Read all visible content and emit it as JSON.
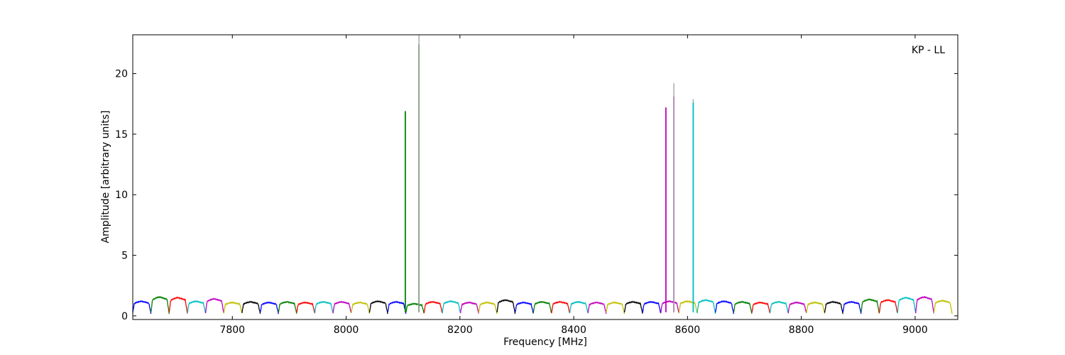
{
  "chart_data": {
    "type": "line",
    "title": "",
    "annotation": "KP - LL",
    "xlabel": "Frequency [MHz]",
    "ylabel": "Amplitude [arbitrary units]",
    "xlim": [
      7625,
      9075
    ],
    "ylim": [
      -0.3,
      23.2
    ],
    "xticks": [
      7800,
      8000,
      8200,
      8400,
      8600,
      8800,
      9000
    ],
    "yticks": [
      0,
      5,
      10,
      15,
      20
    ],
    "grid": false,
    "legend": "none",
    "channel_colors": [
      "#0000ff",
      "#008000",
      "#ff0000",
      "#00bfbf",
      "#bf00bf",
      "#bfbf00",
      "#000000"
    ],
    "channel_width_mhz": 32,
    "channels": [
      {
        "start": 7625,
        "color": "#0000ff",
        "peak": 1.2
      },
      {
        "start": 7657,
        "color": "#008000",
        "peak": 1.55
      },
      {
        "start": 7689,
        "color": "#ff0000",
        "peak": 1.5
      },
      {
        "start": 7721,
        "color": "#00bfbf",
        "peak": 1.2
      },
      {
        "start": 7753,
        "color": "#bf00bf",
        "peak": 1.4
      },
      {
        "start": 7785,
        "color": "#bfbf00",
        "peak": 1.1
      },
      {
        "start": 7817,
        "color": "#000000",
        "peak": 1.15
      },
      {
        "start": 7849,
        "color": "#0000ff",
        "peak": 1.1
      },
      {
        "start": 7881,
        "color": "#008000",
        "peak": 1.15
      },
      {
        "start": 7913,
        "color": "#ff0000",
        "peak": 1.1
      },
      {
        "start": 7945,
        "color": "#00bfbf",
        "peak": 1.15
      },
      {
        "start": 7977,
        "color": "#bf00bf",
        "peak": 1.15
      },
      {
        "start": 8009,
        "color": "#bfbf00",
        "peak": 1.1
      },
      {
        "start": 8041,
        "color": "#000000",
        "peak": 1.2
      },
      {
        "start": 8073,
        "color": "#0000ff",
        "peak": 1.15
      },
      {
        "start": 8105,
        "color": "#008000",
        "peak": 1.0
      },
      {
        "start": 8137,
        "color": "#ff0000",
        "peak": 1.15
      },
      {
        "start": 8169,
        "color": "#00bfbf",
        "peak": 1.2
      },
      {
        "start": 8201,
        "color": "#bf00bf",
        "peak": 1.1
      },
      {
        "start": 8233,
        "color": "#bfbf00",
        "peak": 1.1
      },
      {
        "start": 8265,
        "color": "#000000",
        "peak": 1.3
      },
      {
        "start": 8297,
        "color": "#0000ff",
        "peak": 1.1
      },
      {
        "start": 8329,
        "color": "#008000",
        "peak": 1.15
      },
      {
        "start": 8361,
        "color": "#ff0000",
        "peak": 1.15
      },
      {
        "start": 8393,
        "color": "#00bfbf",
        "peak": 1.15
      },
      {
        "start": 8425,
        "color": "#bf00bf",
        "peak": 1.1
      },
      {
        "start": 8457,
        "color": "#bfbf00",
        "peak": 1.1
      },
      {
        "start": 8489,
        "color": "#000000",
        "peak": 1.15
      },
      {
        "start": 8521,
        "color": "#0000ff",
        "peak": 1.15
      },
      {
        "start": 8553,
        "color": "#bf00bf",
        "peak": 1.2
      },
      {
        "start": 8585,
        "color": "#bfbf00",
        "peak": 1.2
      },
      {
        "start": 8617,
        "color": "#00bfbf",
        "peak": 1.3
      },
      {
        "start": 8649,
        "color": "#0000ff",
        "peak": 1.2
      },
      {
        "start": 8681,
        "color": "#008000",
        "peak": 1.15
      },
      {
        "start": 8713,
        "color": "#ff0000",
        "peak": 1.1
      },
      {
        "start": 8745,
        "color": "#00bfbf",
        "peak": 1.15
      },
      {
        "start": 8777,
        "color": "#bf00bf",
        "peak": 1.1
      },
      {
        "start": 8809,
        "color": "#bfbf00",
        "peak": 1.1
      },
      {
        "start": 8841,
        "color": "#000000",
        "peak": 1.15
      },
      {
        "start": 8873,
        "color": "#0000ff",
        "peak": 1.15
      },
      {
        "start": 8905,
        "color": "#008000",
        "peak": 1.35
      },
      {
        "start": 8937,
        "color": "#ff0000",
        "peak": 1.3
      },
      {
        "start": 8969,
        "color": "#00bfbf",
        "peak": 1.5
      },
      {
        "start": 9001,
        "color": "#bf00bf",
        "peak": 1.55
      },
      {
        "start": 9033,
        "color": "#bfbf00",
        "peak": 1.25
      }
    ],
    "spikes": [
      {
        "x": 8104,
        "y": 16.9,
        "color": "#008000"
      },
      {
        "x": 8128,
        "y": 22.4,
        "color": "#008000"
      },
      {
        "x": 8128,
        "y": 23.2,
        "color": "#aaaaaa"
      },
      {
        "x": 8562,
        "y": 17.2,
        "color": "#bf00bf"
      },
      {
        "x": 8576,
        "y": 18.1,
        "color": "#bf00bf"
      },
      {
        "x": 8576,
        "y": 19.2,
        "color": "#aaaaaa"
      },
      {
        "x": 8610,
        "y": 17.9,
        "color": "#aaaaaa"
      },
      {
        "x": 8610,
        "y": 17.6,
        "color": "#00bfbf"
      }
    ]
  }
}
